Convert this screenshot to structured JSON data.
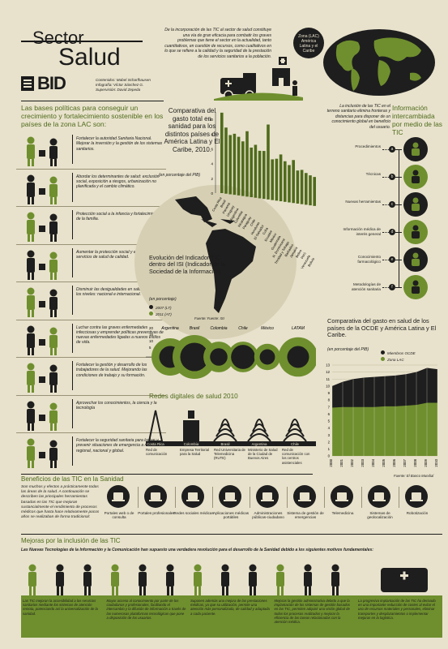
{
  "header": {
    "title_top": "Sector",
    "title_main": "Salud",
    "logo": "BID",
    "credits": [
      "Contenidos: Mabel Scharfhausen",
      "Infografía: Víctor Sánchez G.",
      "Supervisión: David Zepeda"
    ],
    "intro": "De la incorporación de las TIC al sector de salud constituye una vía de gran eficacia para combatir los graves problemas que tiene el sector en la actualidad, tanto cuantitativos, en cuestión de recursos, como cualitativos en lo que se refiere a la calidad y la seguridad de la prestación de los servicios sanitarios a la población.",
    "zona_label": "Zona (LAC) América Latina y el Caribe"
  },
  "policies": {
    "heading": "Las bases políticas para conseguir un crecimiento y fortalecimiento sostenible en los países de la zona LAC son:",
    "items": [
      "Fortalecer la autoridad Sanitaria Nacional. Mejorar la inversión y la gestión de los sistemas sanitarios.",
      "Abordar los determinantes de salud: exclusión social, exposición a riesgos, urbanización no planificada y el cambio climático.",
      "Protección social a la infancia y fortalecimiento de la familia.",
      "Aumentar la protección social y el acceso a los servicios de salud de calidad.",
      "Disminuir las desigualdades en salud a todos los niveles: nacional e internacional.",
      "Luchar contra las graves enfermedades infecciosas y emprender políticas preventivas de nuevas enfermedades ligadas a nuevos estilos de vida.",
      "Fortalecer la gestión y desarrollo de los trabajadores de la salud. Mejorando las condiciones de trabajo y su formación.",
      "Aprovechar los conocimientos, la ciencia y la tecnología",
      "Fortalecer la seguridad sanitaria para luchar y prevenir situaciones de emergencia a nivel regional, nacional y global."
    ]
  },
  "gasto_chart": {
    "title": "Comparativa del gasto total en sanidad para los distintos países de América Latina y El Caribe, 2010.",
    "unit": "(en porcentaje del PIB)",
    "y_ticks": [
      "10",
      "8",
      "6",
      "4",
      "2",
      "0"
    ],
    "countries": [
      "Costa Rica",
      "Brasil",
      "Panamá",
      "Uruguay",
      "Argentina",
      "Colombia",
      "Nicaragua",
      "Paraguay",
      "Chile",
      "Honduras",
      "El Salvador",
      "Cuba",
      "Ecuador",
      "México",
      "Guatemala",
      "R. Dominicana",
      "Trinidad y Tobago",
      "Barbados",
      "Jamaica",
      "Belice",
      "Perú",
      "Venezuela",
      "Bolivia"
    ]
  },
  "isi_chart": {
    "title": "Evolución del Indicador TIC dentro del ISI (Indicador de la Sociedad de la Información)",
    "unit": "(en porcentaje)",
    "legend": [
      "2007 (LT)",
      "2011 (AT)"
    ],
    "source": "Fuente: Fuente: ISI",
    "y_ticks": [
      "20",
      "15",
      "10",
      "5"
    ],
    "countries": [
      "Argentina",
      "Brasil",
      "Colombia",
      "Chile",
      "México",
      "LATAM"
    ]
  },
  "info_tic": {
    "intro": "La inclusión de las TIC en el terreno sanitario elimina fronteras y distancias para disponer de un conocimiento global en beneficio del usuario.",
    "title": "Información intercambiada por medio de las TIC",
    "items": [
      {
        "label": "Procedimientos",
        "letter": "a",
        "icon": "person-icon"
      },
      {
        "label": "Técnicas",
        "letter": "b",
        "icon": "medical-staff-icon"
      },
      {
        "label": "Nuevas herramientas",
        "letter": "c",
        "icon": "medical-kit-icon"
      },
      {
        "label": "Información médica de interés general",
        "letter": "d",
        "icon": "doctor-icon"
      },
      {
        "label": "Conocimiento farmacológico",
        "letter": "e",
        "icon": "microscope-icon"
      },
      {
        "label": "Metodologías de atención sanitaria",
        "letter": "f",
        "icon": "hospital-bed-icon"
      }
    ]
  },
  "redes": {
    "title": "Redes digitales de salud 2010",
    "countries": [
      "Costa Rica",
      "Colombia",
      "Brasil",
      "Argentina",
      "Chile"
    ],
    "labels": [
      "Red de comunicación",
      "Empresa Territorial para la Salud",
      "Red Universitaria de Telemedicina (RUTE)",
      "Ministerio de Salud de la Ciudad de Buenos Aires",
      "Red de comunicación con los centros asistenciales"
    ]
  },
  "ocde_chart": {
    "title": "Comparativa del gasto en salud de los países de la OCDE y América Latina y El Caribe.",
    "unit": "(en porcentaje del PIB)",
    "legend": [
      "Miembros OCDE",
      "Zona LAC"
    ],
    "source": "Fuente: El Banco Mundial",
    "y_ticks": [
      "13",
      "12",
      "11",
      "10",
      "9",
      "8",
      "7",
      "6",
      "5",
      "4",
      "3",
      "2",
      "1",
      "0"
    ],
    "x_ticks": [
      "2000",
      "2001",
      "2002",
      "2003",
      "2004",
      "2005",
      "2006",
      "2007",
      "2008",
      "2009",
      "2010"
    ]
  },
  "chart_data": [
    {
      "type": "bar",
      "title": "Comparativa del gasto total en sanidad para los distintos países de América Latina y El Caribe, 2010.",
      "ylabel": "(en porcentaje del PIB)",
      "categories": [
        "Costa Rica",
        "Brasil",
        "Panamá",
        "Uruguay",
        "Argentina",
        "Colombia",
        "Nicaragua",
        "Paraguay",
        "Chile",
        "Honduras",
        "El Salvador",
        "Cuba",
        "Ecuador",
        "México",
        "Guatemala",
        "R. Dominicana",
        "Trinidad y Tobago",
        "Barbados",
        "Jamaica",
        "Belice",
        "Perú",
        "Venezuela",
        "Bolivia"
      ],
      "values": [
        10.9,
        9.0,
        8.1,
        8.4,
        8.1,
        7.6,
        9.1,
        7.0,
        7.5,
        6.8,
        6.9,
        10.6,
        6.0,
        6.2,
        6.9,
        6.1,
        5.7,
        6.5,
        5.2,
        5.4,
        5.1,
        4.9,
        4.8
      ],
      "ylim": [
        0,
        11
      ]
    },
    {
      "type": "scatter",
      "title": "Evolución del Indicador TIC dentro del ISI (Indicador de la Sociedad de la Información)",
      "ylabel": "(en porcentaje)",
      "categories": [
        "Argentina",
        "Brasil",
        "Colombia",
        "Chile",
        "México",
        "LATAM"
      ],
      "series": [
        {
          "name": "2007 (LT)",
          "values": [
            10,
            13,
            8,
            11,
            7,
            10
          ]
        },
        {
          "name": "2011 (AT)",
          "values": [
            17,
            20,
            14,
            14,
            12,
            18
          ]
        }
      ]
    },
    {
      "type": "area",
      "title": "Comparativa del gasto en salud de los países de la OCDE y América Latina y El Caribe.",
      "ylabel": "(en porcentaje del PIB)",
      "x": [
        "2000",
        "2001",
        "2002",
        "2003",
        "2004",
        "2005",
        "2006",
        "2007",
        "2008",
        "2009",
        "2010"
      ],
      "series": [
        {
          "name": "Miembros OCDE",
          "values": [
            10.0,
            10.6,
            11.0,
            11.2,
            11.3,
            11.4,
            11.5,
            11.7,
            12.0,
            12.6,
            12.4
          ]
        },
        {
          "name": "Zona LAC",
          "values": [
            6.9,
            7.0,
            7.0,
            7.0,
            7.0,
            7.1,
            7.1,
            7.2,
            7.3,
            7.6,
            7.6
          ]
        }
      ],
      "ylim": [
        0,
        13
      ]
    }
  ],
  "beneficios": {
    "title": "Beneficios de las TIC en la Sanidad",
    "intro": "Son muchos y efectos a prácticamente todas las áreas de la salud. A continuación se describen las principales herramientas basadas en las TIC que mejoran sustancialmente el rendimiento de procesos médicos que hasta hace relativamente pocos años se realizaban de forma tradicional:",
    "items": [
      {
        "label": "Portales web o de consulta",
        "icon": "laptop-icon"
      },
      {
        "label": "Portales profesionales",
        "icon": "professional-icon"
      },
      {
        "label": "Redes sociales médicas",
        "icon": "social-network-icon"
      },
      {
        "label": "Aplicaciones médicas portátiles",
        "icon": "mobile-app-icon"
      },
      {
        "label": "Administraciones públicas-ciudadano",
        "icon": "administration-icon"
      },
      {
        "label": "Sistema de gestión de emergencias",
        "icon": "emergency-icon"
      },
      {
        "label": "Telemedicina",
        "icon": "telemedicine-icon"
      },
      {
        "label": "Sistemas de geolocalización",
        "icon": "geolocation-icon"
      },
      {
        "label": "Robotización",
        "icon": "robot-icon"
      }
    ]
  },
  "mejoras": {
    "title": "Mejoras por la inclusión de las TIC",
    "subtitle": "Las Nuevas Tecnologías de la Información y la Comunicación han supuesto una verdadera revolución para el desarrollo de la Sanidad debido a los siguientes motivos fundamentales:",
    "items": [
      "Las TIC mejoran la accesibilidad a los servicios sanitarios mediante los sistemas de atención remota, potenciando así la universalización de la sanidad.",
      "Mayor acceso al conocimiento por parte de los ciudadanos y profesionales, facilitando el intercambio y la difusión de información a través de las numerosas plataformas tecnológicas que pone a disposición de los usuarios.",
      "Suponen además una mejora de las prestaciones médicas, ya que su utilización, permite una atención más personalizada, de calidad y adaptada a cada paciente.",
      "Mejoras la gestión administrativa debido a que la implantación de los sistemas de gestión basados en las TIC, permiten adquirir una visión global de todos los procesos realizados y mejorar la eficiencia de las tareas relacionadas con la atención médica.",
      "La progresiva implantación de las TIC ha derivado en una importante reducción de costes al evitar el uso de recursos materiales y personales, eliminar transportes y desplazamientos o implementar mejoras en la logística."
    ]
  }
}
